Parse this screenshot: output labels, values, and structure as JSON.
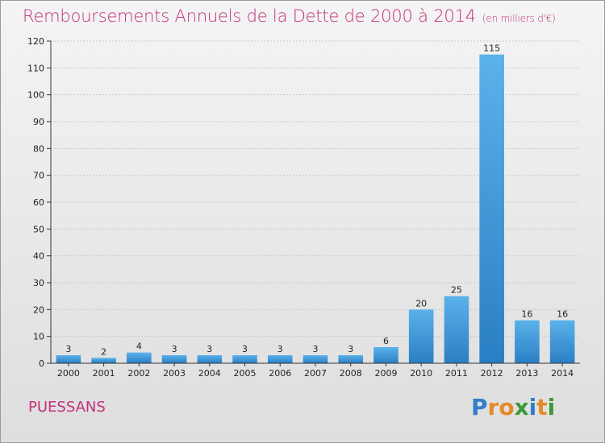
{
  "header": {
    "title": "Remboursements Annuels de la Dette de 2000 à 2014",
    "subtitle": "(en milliers d'€)"
  },
  "footer": {
    "commune": "PUESSANS",
    "logo_text": "Proxiti"
  },
  "colors": {
    "title": "#c2307a",
    "bar_light": "#5bb2ea",
    "bar_dark": "#2a7fc4",
    "logo_letters": [
      "#2f80c8",
      "#e58a2a",
      "#e58a2a",
      "#3a9a3a",
      "#2f80c8",
      "#e58a2a",
      "#3a9a3a"
    ]
  },
  "chart_data": {
    "type": "bar",
    "title": "Remboursements Annuels de la Dette de 2000 à 2014",
    "subtitle": "(en milliers d'€)",
    "xlabel": "",
    "ylabel": "",
    "categories": [
      "2000",
      "2001",
      "2002",
      "2003",
      "2004",
      "2005",
      "2006",
      "2007",
      "2008",
      "2009",
      "2010",
      "2011",
      "2012",
      "2013",
      "2014"
    ],
    "values": [
      3,
      2,
      4,
      3,
      3,
      3,
      3,
      3,
      3,
      6,
      20,
      25,
      115,
      16,
      16
    ],
    "ylim": [
      0,
      120
    ],
    "yticks": [
      0,
      10,
      20,
      30,
      40,
      50,
      60,
      70,
      80,
      90,
      100,
      110,
      120
    ],
    "grid": true,
    "data_labels": true
  }
}
